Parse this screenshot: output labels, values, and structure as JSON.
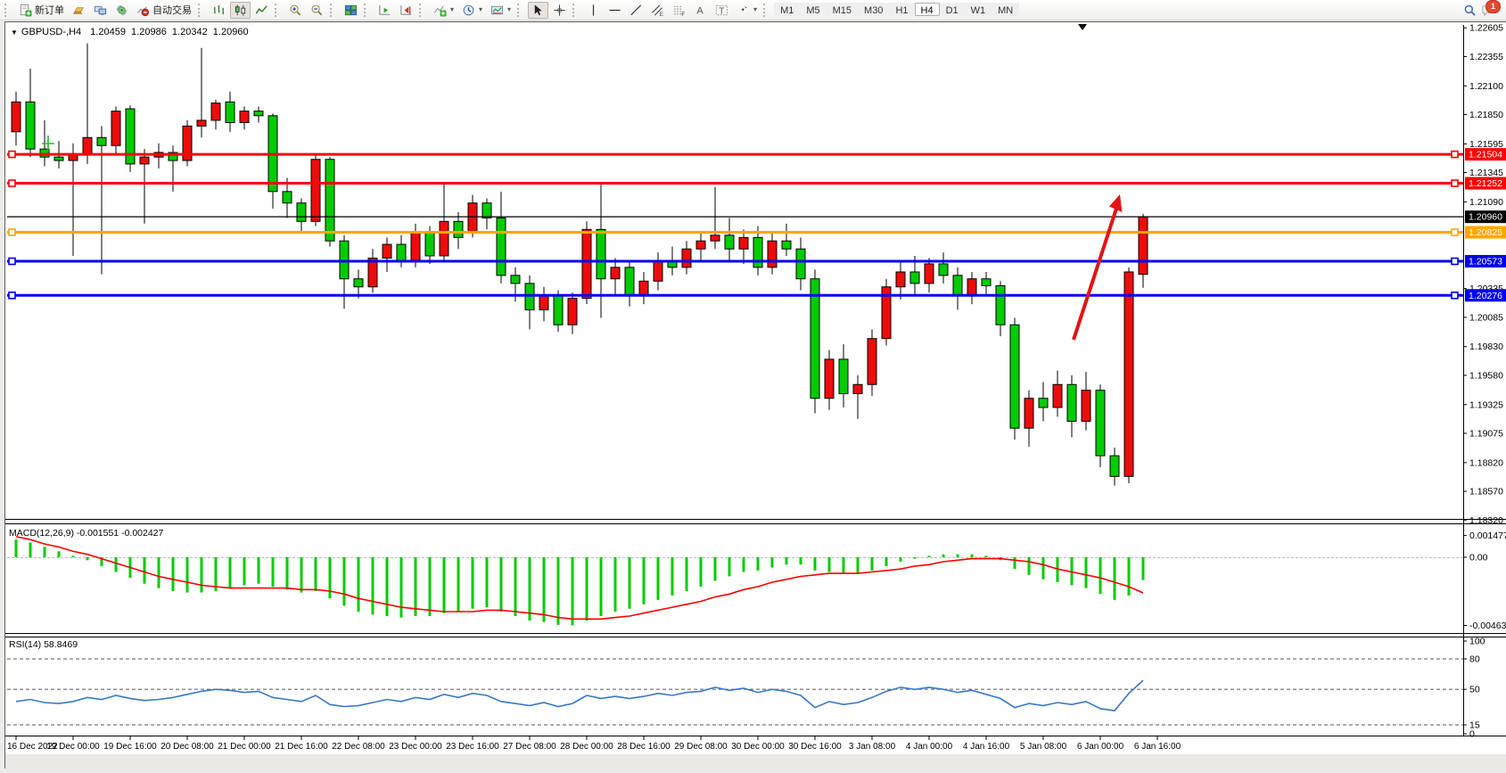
{
  "toolbar": {
    "new_order_label": "新订单",
    "auto_trading_label": "自动交易",
    "timeframes": [
      "M1",
      "M5",
      "M15",
      "M30",
      "H1",
      "H4",
      "D1",
      "W1",
      "MN"
    ],
    "active_timeframe": "H4",
    "notification_badge": "1",
    "icons": [
      "new-order-icon",
      "gold-icon",
      "terminals-icon",
      "signal-icon",
      "auto-trading-icon",
      "bar-chart-icon",
      "candlestick-chart-icon",
      "line-chart-icon",
      "zoom-in-icon",
      "zoom-out-icon",
      "tile-windows-icon",
      "auto-scroll-icon",
      "chart-shift-icon",
      "add-indicator-icon",
      "periods-clock-icon",
      "template-icon",
      "cursor-icon",
      "crosshair-icon",
      "vertical-line-icon",
      "horizontal-line-icon",
      "trendline-icon",
      "equidistant-channel-icon",
      "fibonacci-icon",
      "text-icon",
      "text-label-icon",
      "arrows-tool-icon",
      "search-icon",
      "chat-icon"
    ]
  },
  "chart_data": {
    "type": "candlestick",
    "symbol": "GBPUSD-,H4",
    "collapse_glyph": "▼",
    "ohlc_line": "1.20459  1.20986  1.20342  1.20960",
    "open": 1.20459,
    "high": 1.20986,
    "low": 1.20342,
    "close": 1.2096,
    "bull_color": "#ee0b0b",
    "bear_color": "#00cc00",
    "price_axis": {
      "max": 1.2263,
      "min": 1.1833,
      "ticks": [
        "1.22605",
        "1.22355",
        "1.22100",
        "1.21850",
        "1.21595",
        "1.21345",
        "1.21090",
        "1.20335",
        "1.20085",
        "1.19830",
        "1.19580",
        "1.19325",
        "1.19075",
        "1.18820",
        "1.18570",
        "1.18320"
      ]
    },
    "time_labels": [
      "16 Dec 2022",
      "19 Dec 00:00",
      "19 Dec 16:00",
      "20 Dec 08:00",
      "21 Dec 00:00",
      "21 Dec 16:00",
      "22 Dec 08:00",
      "23 Dec 00:00",
      "23 Dec 16:00",
      "27 Dec 08:00",
      "28 Dec 00:00",
      "28 Dec 16:00",
      "29 Dec 08:00",
      "30 Dec 00:00",
      "30 Dec 16:00",
      "3 Jan 08:00",
      "4 Jan 00:00",
      "4 Jan 16:00",
      "5 Jan 08:00",
      "6 Jan 00:00",
      "6 Jan 16:00"
    ],
    "candles": [
      [
        1.217,
        1.2205,
        1.2158,
        1.2196
      ],
      [
        1.2196,
        1.2225,
        1.2148,
        1.2155
      ],
      [
        1.2155,
        1.218,
        1.214,
        1.2148
      ],
      [
        1.2148,
        1.2162,
        1.2138,
        1.2145
      ],
      [
        1.2145,
        1.216,
        1.2062,
        1.215
      ],
      [
        1.215,
        1.2247,
        1.2142,
        1.2165
      ],
      [
        1.2165,
        1.2175,
        1.2046,
        1.2158
      ],
      [
        1.2158,
        1.2192,
        1.215,
        1.2188
      ],
      [
        1.219,
        1.2193,
        1.2135,
        1.2142
      ],
      [
        1.2142,
        1.2155,
        1.209,
        1.2148
      ],
      [
        1.2148,
        1.216,
        1.2138,
        1.2152
      ],
      [
        1.2152,
        1.2158,
        1.2118,
        1.2145
      ],
      [
        1.2145,
        1.218,
        1.214,
        1.2175
      ],
      [
        1.2175,
        1.2243,
        1.2165,
        1.218
      ],
      [
        1.218,
        1.2198,
        1.2172,
        1.2195
      ],
      [
        1.2196,
        1.2205,
        1.217,
        1.2178
      ],
      [
        1.2178,
        1.2192,
        1.2172,
        1.2188
      ],
      [
        1.2188,
        1.2192,
        1.2178,
        1.2184
      ],
      [
        1.2184,
        1.2186,
        1.2103,
        1.2118
      ],
      [
        1.2118,
        1.213,
        1.2095,
        1.2108
      ],
      [
        1.2108,
        1.2112,
        1.2082,
        1.2092
      ],
      [
        1.2092,
        1.215,
        1.2088,
        1.2146
      ],
      [
        1.2146,
        1.2148,
        1.207,
        1.2075
      ],
      [
        1.2075,
        1.208,
        1.2016,
        1.2042
      ],
      [
        1.2042,
        1.205,
        1.2025,
        1.2035
      ],
      [
        1.2035,
        1.2068,
        1.203,
        1.206
      ],
      [
        1.206,
        1.2078,
        1.2048,
        1.2072
      ],
      [
        1.2072,
        1.208,
        1.2052,
        1.2058
      ],
      [
        1.2058,
        1.209,
        1.2052,
        1.2082
      ],
      [
        1.2082,
        1.2088,
        1.2055,
        1.2062
      ],
      [
        1.2062,
        1.2125,
        1.2058,
        1.2092
      ],
      [
        1.2092,
        1.21,
        1.2068,
        1.2078
      ],
      [
        1.2082,
        1.2115,
        1.2078,
        1.2108
      ],
      [
        1.2108,
        1.2112,
        1.2085,
        1.2095
      ],
      [
        1.2095,
        1.2118,
        1.2038,
        1.2045
      ],
      [
        1.2045,
        1.2052,
        1.2022,
        1.2038
      ],
      [
        1.2038,
        1.2045,
        1.1998,
        1.2015
      ],
      [
        1.2015,
        1.2035,
        1.2005,
        1.2028
      ],
      [
        1.2028,
        1.2032,
        1.1996,
        1.2002
      ],
      [
        1.2002,
        1.203,
        1.1994,
        1.2025
      ],
      [
        1.2025,
        1.2092,
        1.202,
        1.2085
      ],
      [
        1.2085,
        1.2124,
        1.2008,
        1.2042
      ],
      [
        1.2042,
        1.206,
        1.2028,
        1.2052
      ],
      [
        1.2052,
        1.2058,
        1.2018,
        1.2028
      ],
      [
        1.2028,
        1.2048,
        1.202,
        1.204
      ],
      [
        1.204,
        1.2065,
        1.2032,
        1.2058
      ],
      [
        1.2058,
        1.207,
        1.2045,
        1.2052
      ],
      [
        1.2052,
        1.2075,
        1.2046,
        1.2068
      ],
      [
        1.2068,
        1.2082,
        1.2058,
        1.2075
      ],
      [
        1.2075,
        1.2122,
        1.2068,
        1.208
      ],
      [
        1.208,
        1.2095,
        1.2058,
        1.2068
      ],
      [
        1.2068,
        1.2085,
        1.2055,
        1.2078
      ],
      [
        1.2078,
        1.2088,
        1.2045,
        1.2052
      ],
      [
        1.2052,
        1.2082,
        1.2046,
        1.2075
      ],
      [
        1.2075,
        1.209,
        1.2062,
        1.2068
      ],
      [
        1.2068,
        1.2078,
        1.2032,
        1.2042
      ],
      [
        1.2042,
        1.205,
        1.1925,
        1.1938
      ],
      [
        1.1938,
        1.198,
        1.1928,
        1.1972
      ],
      [
        1.1972,
        1.1985,
        1.193,
        1.1942
      ],
      [
        1.1942,
        1.1958,
        1.192,
        1.195
      ],
      [
        1.195,
        1.1998,
        1.194,
        1.199
      ],
      [
        1.199,
        1.2042,
        1.1984,
        1.2035
      ],
      [
        1.2035,
        1.2058,
        1.2024,
        1.2048
      ],
      [
        1.2048,
        1.2062,
        1.2028,
        1.2038
      ],
      [
        1.2038,
        1.206,
        1.203,
        1.2055
      ],
      [
        1.2055,
        1.2065,
        1.2038,
        1.2045
      ],
      [
        1.2045,
        1.2052,
        1.2015,
        1.2028
      ],
      [
        1.2028,
        1.2048,
        1.202,
        1.2042
      ],
      [
        1.2042,
        1.2048,
        1.2028,
        1.2036
      ],
      [
        1.2036,
        1.204,
        1.1992,
        1.2002
      ],
      [
        1.2002,
        1.2008,
        1.1902,
        1.1912
      ],
      [
        1.1912,
        1.1945,
        1.1896,
        1.1938
      ],
      [
        1.1938,
        1.1952,
        1.1918,
        1.193
      ],
      [
        1.193,
        1.1962,
        1.1922,
        1.195
      ],
      [
        1.195,
        1.1958,
        1.1904,
        1.1918
      ],
      [
        1.1918,
        1.1961,
        1.191,
        1.1945
      ],
      [
        1.1945,
        1.195,
        1.1878,
        1.1888
      ],
      [
        1.1888,
        1.1895,
        1.1862,
        1.187
      ],
      [
        1.187,
        1.2052,
        1.1864,
        1.2048
      ],
      [
        1.20459,
        1.20986,
        1.20342,
        1.2096
      ]
    ],
    "hlines": [
      {
        "price": 1.21504,
        "label": "1.21504",
        "color": "#ff0000",
        "width": 3
      },
      {
        "price": 1.21252,
        "label": "1.21252",
        "color": "#ff0000",
        "width": 3
      },
      {
        "price": 1.20825,
        "label": "1.20825",
        "color": "#ffa500",
        "width": 3
      },
      {
        "price": 1.20573,
        "label": "1.20573",
        "color": "#0000ee",
        "width": 3
      },
      {
        "price": 1.20276,
        "label": "1.20276",
        "color": "#0000ee",
        "width": 3
      }
    ],
    "current_price": {
      "price": 1.2096,
      "label": "1.20960",
      "color": "#000000"
    },
    "macd": {
      "label": "MACD(12,26,9) -0.001551 -0.002427",
      "params": "12,26,9",
      "value": -0.001551,
      "signal_value": -0.002427,
      "hist_color": "#00cc00",
      "signal_color": "#ff0000",
      "axis_ticks": [
        {
          "v": 0.001477,
          "label": "0.001477"
        },
        {
          "v": 0.0,
          "label": "0.00"
        },
        {
          "v": -0.004636,
          "label": "-0.004636"
        }
      ],
      "histogram": [
        0.0012,
        0.001,
        0.0007,
        0.0004,
        0.0001,
        -0.0002,
        -0.0006,
        -0.001,
        -0.0014,
        -0.0018,
        -0.0021,
        -0.0023,
        -0.0024,
        -0.0024,
        -0.0023,
        -0.0021,
        -0.0019,
        -0.0018,
        -0.002,
        -0.0022,
        -0.0024,
        -0.0023,
        -0.0028,
        -0.0033,
        -0.0037,
        -0.0039,
        -0.004,
        -0.0041,
        -0.004,
        -0.004,
        -0.0038,
        -0.0037,
        -0.0035,
        -0.0034,
        -0.0037,
        -0.004,
        -0.0043,
        -0.0044,
        -0.0046,
        -0.00463,
        -0.0043,
        -0.004,
        -0.0037,
        -0.0035,
        -0.0032,
        -0.0029,
        -0.0026,
        -0.0023,
        -0.002,
        -0.0016,
        -0.0013,
        -0.001,
        -0.0009,
        -0.0007,
        -0.0005,
        -0.0005,
        -0.0009,
        -0.001,
        -0.0011,
        -0.0011,
        -0.0009,
        -0.0006,
        -0.0003,
        -0.0001,
        0.0001,
        0.0002,
        0.0002,
        0.0002,
        0.0001,
        -0.0002,
        -0.0008,
        -0.0012,
        -0.0015,
        -0.0017,
        -0.0019,
        -0.0021,
        -0.0025,
        -0.0029,
        -0.0026,
        -0.001551
      ],
      "signal": [
        0.0014,
        0.0012,
        0.0009,
        0.0007,
        0.0004,
        0.0002,
        -0.0001,
        -0.0004,
        -0.0007,
        -0.001,
        -0.0013,
        -0.0015,
        -0.0017,
        -0.0019,
        -0.002,
        -0.0021,
        -0.0021,
        -0.0021,
        -0.0021,
        -0.0021,
        -0.0022,
        -0.0022,
        -0.0023,
        -0.0025,
        -0.0028,
        -0.003,
        -0.0032,
        -0.0034,
        -0.0035,
        -0.0036,
        -0.0037,
        -0.0037,
        -0.0037,
        -0.0036,
        -0.0036,
        -0.0037,
        -0.0038,
        -0.0039,
        -0.0041,
        -0.0042,
        -0.0042,
        -0.0042,
        -0.0041,
        -0.004,
        -0.0038,
        -0.0036,
        -0.0034,
        -0.0032,
        -0.003,
        -0.0027,
        -0.0025,
        -0.0022,
        -0.002,
        -0.0017,
        -0.0015,
        -0.0013,
        -0.0012,
        -0.0011,
        -0.0011,
        -0.0011,
        -0.001,
        -0.0009,
        -0.0008,
        -0.0006,
        -0.0005,
        -0.0003,
        -0.0002,
        -0.0001,
        -0.0001,
        -0.0001,
        -0.0002,
        -0.0003,
        -0.0005,
        -0.0008,
        -0.001,
        -0.0012,
        -0.0014,
        -0.0017,
        -0.002,
        -0.002427
      ]
    },
    "rsi": {
      "label": "RSI(14) 58.8469",
      "period": 14,
      "value": 58.8469,
      "line_color": "#3878c8",
      "axis_ticks": [
        {
          "v": 100,
          "label": "100"
        },
        {
          "v": 80,
          "label": "80"
        },
        {
          "v": 50,
          "label": "50"
        },
        {
          "v": 15,
          "label": "15"
        },
        {
          "v": 0,
          "label": "0"
        }
      ],
      "dashed_levels": [
        80,
        50,
        15
      ],
      "values": [
        38,
        40,
        37,
        36,
        38,
        42,
        40,
        44,
        41,
        39,
        40,
        42,
        45,
        48,
        50,
        49,
        47,
        48,
        42,
        40,
        38,
        44,
        35,
        33,
        34,
        37,
        40,
        38,
        42,
        40,
        45,
        42,
        46,
        44,
        38,
        36,
        34,
        37,
        33,
        36,
        44,
        41,
        43,
        41,
        43,
        46,
        44,
        47,
        48,
        52,
        49,
        51,
        47,
        50,
        48,
        44,
        32,
        38,
        35,
        37,
        42,
        48,
        52,
        50,
        52,
        50,
        47,
        49,
        45,
        41,
        32,
        36,
        34,
        37,
        35,
        38,
        31,
        29,
        46,
        58.8469
      ]
    },
    "annotations": {
      "trend_arrow": {
        "color": "#e11414",
        "direction": "up"
      },
      "cross_marker": {
        "color": "#2eb82e"
      }
    }
  }
}
